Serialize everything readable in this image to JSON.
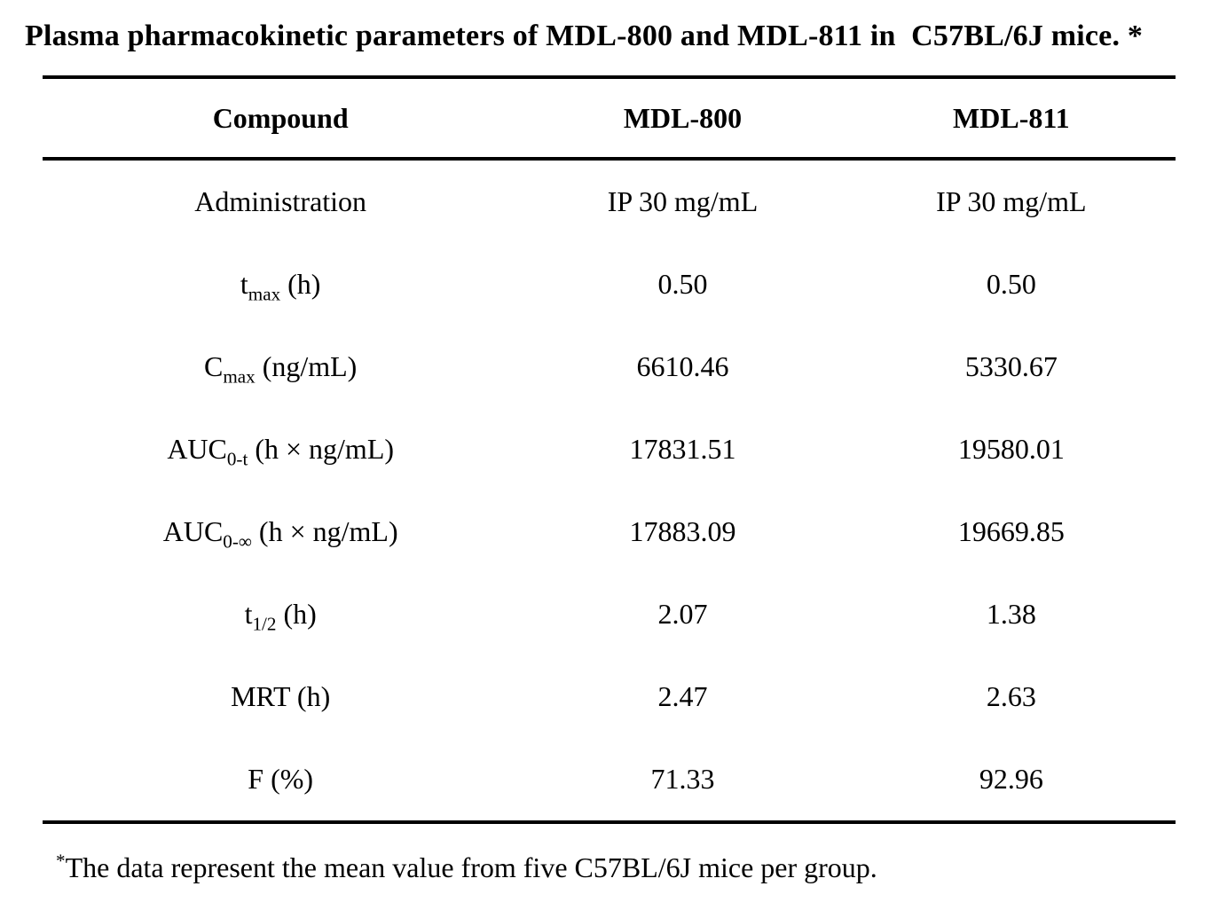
{
  "colors": {
    "text": "#000000",
    "background": "#ffffff",
    "rule": "#000000"
  },
  "title": "Plasma pharmacokinetic parameters of MDL-800 and MDL-811 in  C57BL/6J mice. *",
  "table": {
    "header": {
      "compound": "Compound",
      "mdl800": "MDL-800",
      "mdl811": "MDL-811"
    },
    "rows": [
      {
        "label": {
          "main": "Administration",
          "sub": "",
          "rest": ""
        },
        "mdl800": "IP 30 mg/mL",
        "mdl811": "IP 30 mg/mL"
      },
      {
        "label": {
          "main": "t",
          "sub": "max",
          "rest": " (h)"
        },
        "mdl800": "0.50",
        "mdl811": "0.50"
      },
      {
        "label": {
          "main": "C",
          "sub": "max",
          "rest": " (ng/mL)"
        },
        "mdl800": "6610.46",
        "mdl811": "5330.67"
      },
      {
        "label": {
          "main": "AUC",
          "sub": "0-t",
          "rest": " (h × ng/mL)"
        },
        "mdl800": "17831.51",
        "mdl811": "19580.01"
      },
      {
        "label": {
          "main": "AUC",
          "sub": "0-∞",
          "rest": " (h × ng/mL)"
        },
        "mdl800": "17883.09",
        "mdl811": "19669.85"
      },
      {
        "label": {
          "main": "t",
          "sub": "1/2",
          "rest": " (h)"
        },
        "mdl800": "2.07",
        "mdl811": "1.38"
      },
      {
        "label": {
          "main": "MRT (h)",
          "sub": "",
          "rest": ""
        },
        "mdl800": "2.47",
        "mdl811": "2.63"
      },
      {
        "label": {
          "main": "F (%)",
          "sub": "",
          "rest": ""
        },
        "mdl800": "71.33",
        "mdl811": "92.96"
      }
    ]
  },
  "footnote": {
    "marker": "*",
    "text": "The data represent the mean value from five C57BL/6J mice per group."
  }
}
